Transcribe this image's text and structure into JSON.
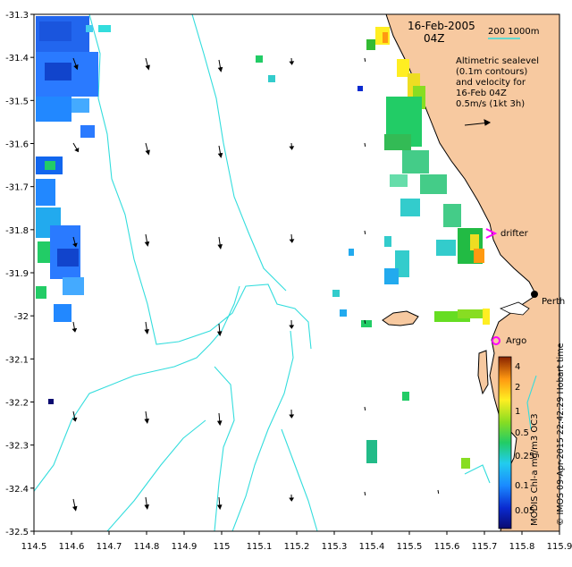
{
  "map": {
    "date_label": "16-Feb-2005",
    "time_label": "04Z",
    "scale_label": "200  1000m",
    "annotation_lines": [
      "Altimetric sealevel",
      "(0.1m contours)",
      "and velocity for",
      "16-Feb 04Z",
      "0.5m/s (1kt 3h)"
    ],
    "side_label": "© IMOS 09-Apr-2015 22:42:29 Hobart time",
    "colorbar_label": "MODIS Chl-a mg/m3 OC3",
    "colorbar_ticks": [
      "0.05",
      "0.1",
      "0.25",
      "0.5",
      "1",
      "2",
      "4"
    ],
    "place_labels": {
      "drifter": "drifter",
      "argo": "Argo",
      "perth": "Perth"
    },
    "lon_ticks": [
      "114.5",
      "114.6",
      "114.7",
      "114.8",
      "114.9",
      "115",
      "115.1",
      "115.2",
      "115.3",
      "115.4",
      "115.5",
      "115.6",
      "115.7",
      "115.8",
      "115.9"
    ],
    "lat_ticks": [
      "-31.3",
      "-31.4",
      "-31.5",
      "-31.6",
      "-31.7",
      "-31.8",
      "-31.9",
      "-32",
      "-32.1",
      "-32.2",
      "-32.3",
      "-32.4",
      "-32.5"
    ],
    "colors": {
      "land": "#f7c9a0",
      "contour": "#33dddd",
      "drifter": "#ff00ff",
      "argo": "#ff00ff",
      "arrow": "#000000"
    }
  }
}
